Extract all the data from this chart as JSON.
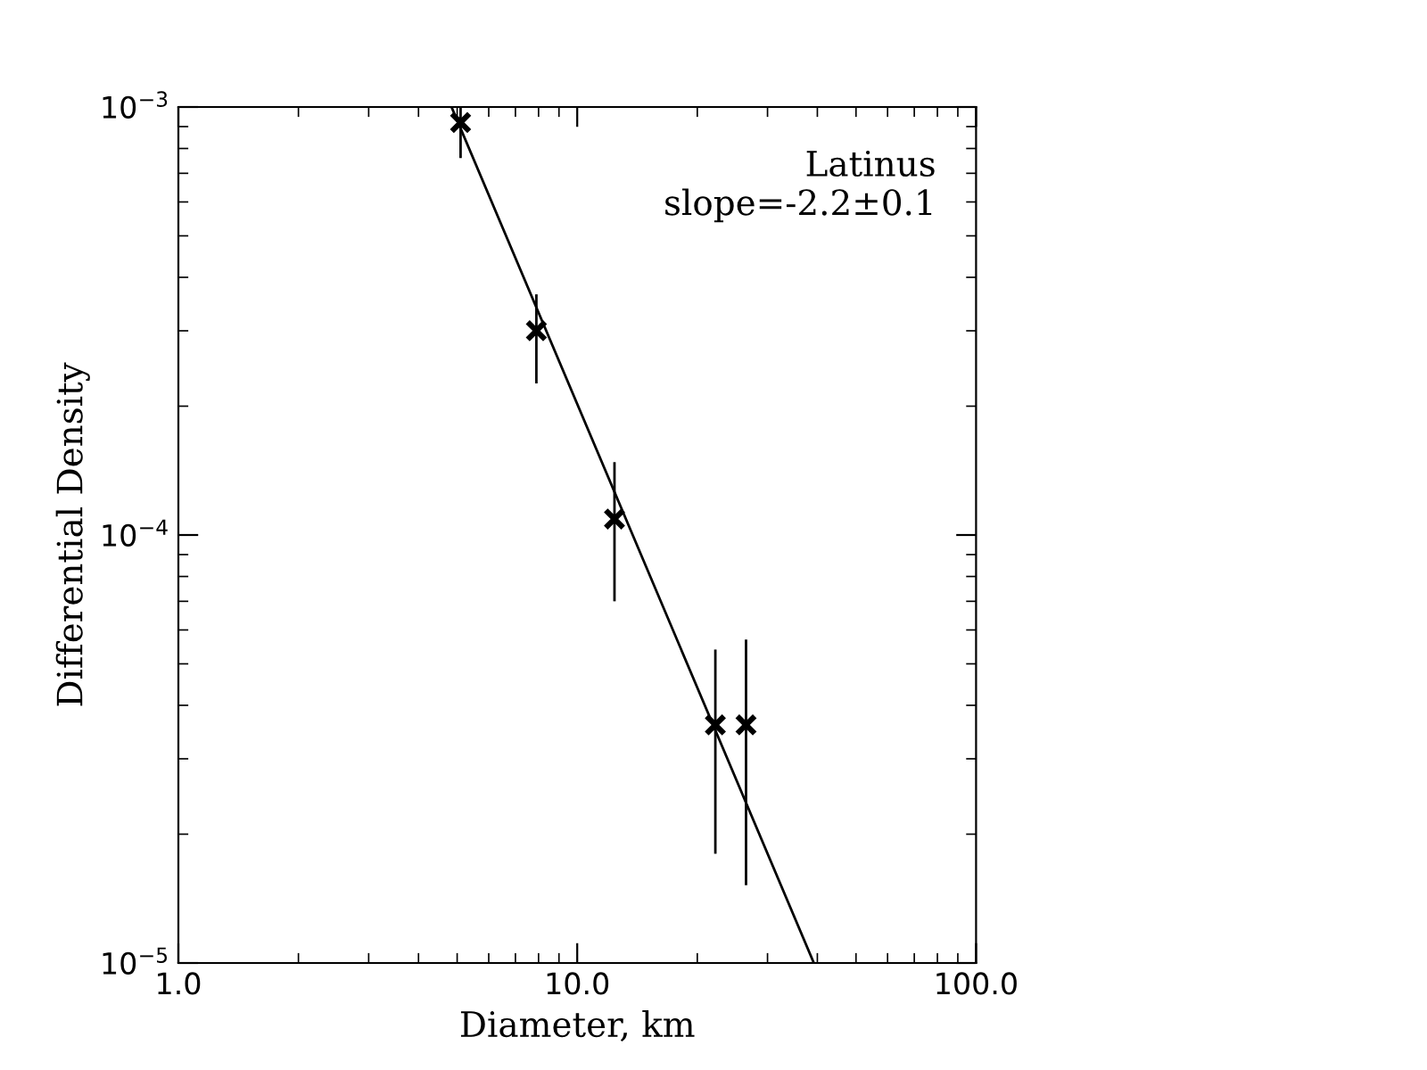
{
  "chart_data": {
    "type": "scatter",
    "xlabel": "Diameter, km",
    "ylabel": "Differential Density",
    "log": "xy",
    "grid": false,
    "xlim": [
      1,
      100
    ],
    "xticks": [
      {
        "value": 1,
        "label": "1.0"
      },
      {
        "value": 10,
        "label": "10.0"
      },
      {
        "value": 100,
        "label": "100.0"
      }
    ],
    "ylim": [
      1e-05,
      0.001
    ],
    "yticks": [
      {
        "value": 1e-05,
        "label": "10$^{−5}$"
      },
      {
        "value": 0.0001,
        "label": "10$^{−4}$"
      },
      {
        "value": 0.001,
        "label": "10$^{−3}$"
      }
    ],
    "annotations": [
      "Latinus",
      "slope=-2.2±0.1"
    ],
    "series": [
      {
        "marker": "cross",
        "color": "#000000",
        "x": [
          5.1,
          7.9,
          12.4,
          22.2,
          26.5
        ],
        "values": [
          0.00092,
          0.0003,
          0.000109,
          3.6e-05,
          3.6e-05
        ],
        "errors": [
          [
            0.00076,
            0.001
          ],
          [
            0.000226,
            0.000365
          ],
          [
            7e-05,
            0.000148
          ],
          [
            1.8e-05,
            5.4e-05
          ],
          [
            1.52e-05,
            5.7e-05
          ]
        ]
      },
      {
        "type": "line",
        "color": "#000000",
        "x": [
          4.84,
          39.2
        ],
        "values": [
          0.001,
          1e-05
        ]
      }
    ]
  }
}
